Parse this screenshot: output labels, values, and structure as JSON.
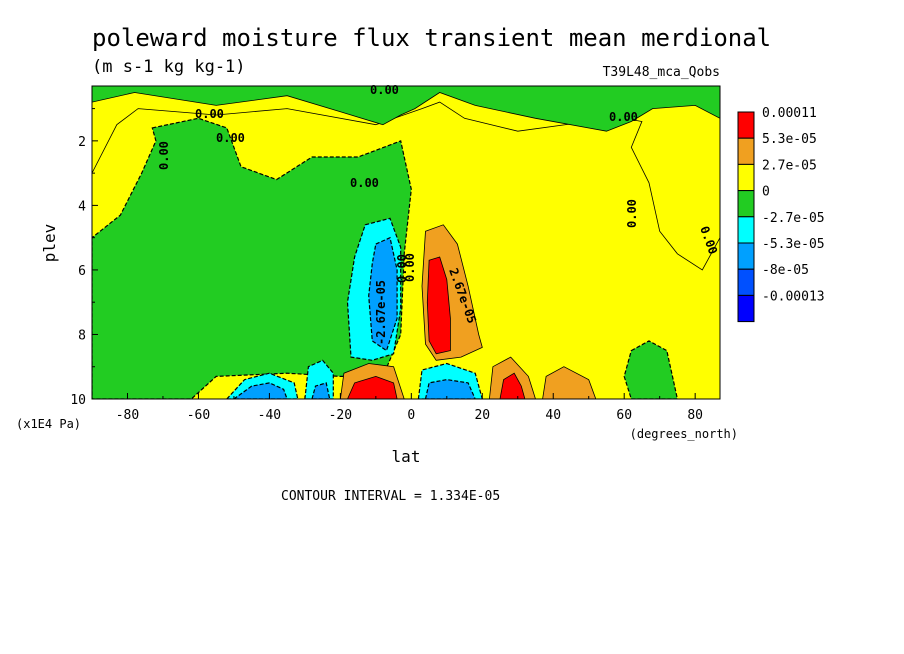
{
  "chart_data": {
    "type": "heatmap",
    "title": "poleward moisture flux transient mean merdional",
    "subtitle": "(m s-1 kg kg-1)",
    "run_label": "T39L48_mca_Qobs",
    "xlabel": "lat",
    "x_units": "(degrees_north)",
    "ylabel": "plev",
    "y_units": "(x1E4 Pa)",
    "xlim": [
      -90,
      87
    ],
    "ylim": [
      10,
      0.3
    ],
    "x_ticks": [
      -80,
      -60,
      -40,
      -20,
      0,
      20,
      40,
      60,
      80
    ],
    "y_ticks": [
      2,
      4,
      6,
      8,
      10
    ],
    "contour_interval": "CONTOUR INTERVAL = 1.334E-05",
    "legend": {
      "placement": "right",
      "labels": [
        "0.00011",
        "5.3e-05",
        "2.7e-05",
        "0",
        "-2.7e-05",
        "-5.3e-05",
        "-8e-05",
        "-0.00013"
      ],
      "colors": [
        "#ff0000",
        "#f0a020",
        "#ffff00",
        "#22cc22",
        "#00ffff",
        "#00a0ff",
        "#0050ff",
        "#0000ff"
      ]
    },
    "contour_labels": [
      "0.00",
      "0.00",
      "0.00",
      "0.00",
      "0.00",
      "0.00",
      "0.00",
      "0.00",
      "0.00",
      "2.67e-05",
      "0.00",
      "-2.67e-05"
    ],
    "regions": [
      {
        "level": "0",
        "color": "#ffff00",
        "points": [
          [
            -77,
            1.0
          ],
          [
            -55,
            1.2
          ],
          [
            -35,
            1.0
          ],
          [
            -10,
            1.5
          ],
          [
            3,
            1.0
          ],
          [
            8,
            0.8
          ],
          [
            15,
            1.3
          ],
          [
            30,
            1.7
          ],
          [
            50,
            1.4
          ],
          [
            60,
            1.3
          ],
          [
            65,
            1.4
          ],
          [
            62,
            2.2
          ],
          [
            67,
            3.3
          ],
          [
            70,
            4.8
          ],
          [
            75,
            5.5
          ],
          [
            82,
            6.0
          ],
          [
            87,
            5.0
          ],
          [
            87,
            10
          ],
          [
            -90,
            10
          ],
          [
            -90,
            3.0
          ],
          [
            -83,
            1.5
          ]
        ]
      },
      {
        "level": "0",
        "color": "#22cc22",
        "points": [
          [
            -90,
            0.3
          ],
          [
            87,
            0.3
          ],
          [
            87,
            1.3
          ],
          [
            80,
            0.9
          ],
          [
            68,
            1.0
          ],
          [
            62,
            1.4
          ],
          [
            55,
            1.7
          ],
          [
            35,
            1.3
          ],
          [
            18,
            0.9
          ],
          [
            8,
            0.5
          ],
          [
            1,
            1.0
          ],
          [
            -3,
            1.2
          ],
          [
            -8,
            1.5
          ],
          [
            -20,
            1.1
          ],
          [
            -35,
            0.6
          ],
          [
            -55,
            0.9
          ],
          [
            -78,
            0.5
          ],
          [
            -90,
            0.8
          ]
        ]
      },
      {
        "level": "-2.7e-05",
        "color": "#22cc22",
        "points": [
          [
            -73,
            1.6
          ],
          [
            -60,
            1.3
          ],
          [
            -52,
            1.6
          ],
          [
            -48,
            2.8
          ],
          [
            -38,
            3.2
          ],
          [
            -28,
            2.5
          ],
          [
            -15,
            2.5
          ],
          [
            -3,
            2.0
          ],
          [
            0,
            3.5
          ],
          [
            -2,
            5.5
          ],
          [
            -3,
            8.0
          ],
          [
            -8,
            9.3
          ],
          [
            -20,
            9.3
          ],
          [
            -35,
            9.2
          ],
          [
            -55,
            9.3
          ],
          [
            -62,
            10
          ],
          [
            -90,
            10
          ],
          [
            -90,
            5.0
          ],
          [
            -82,
            4.3
          ],
          [
            -76,
            3.0
          ],
          [
            -72,
            2.0
          ]
        ]
      },
      {
        "level": "-2.7e-05",
        "color": "#22cc22",
        "points": [
          [
            62,
            8.5
          ],
          [
            67,
            8.2
          ],
          [
            72,
            8.5
          ],
          [
            74,
            9.5
          ],
          [
            75,
            10
          ],
          [
            62,
            10
          ],
          [
            60,
            9.3
          ]
        ]
      },
      {
        "level": "-5.3e-05",
        "color": "#00ffff",
        "points": [
          [
            -13,
            4.6
          ],
          [
            -6,
            4.4
          ],
          [
            -3,
            5.3
          ],
          [
            -3,
            7.2
          ],
          [
            -5,
            8.6
          ],
          [
            -11,
            8.8
          ],
          [
            -17,
            8.7
          ],
          [
            -18,
            7.0
          ],
          [
            -16,
            5.6
          ]
        ]
      },
      {
        "level": "-8e-05",
        "color": "#00a0ff",
        "points": [
          [
            -10,
            5.2
          ],
          [
            -6,
            5.0
          ],
          [
            -4,
            6.0
          ],
          [
            -4,
            7.5
          ],
          [
            -7,
            8.5
          ],
          [
            -11,
            8.2
          ],
          [
            -12,
            6.8
          ],
          [
            -11,
            5.8
          ]
        ]
      },
      {
        "level": "-5.3e-05",
        "color": "#00ffff",
        "points": [
          [
            -52,
            10
          ],
          [
            -47,
            9.4
          ],
          [
            -40,
            9.2
          ],
          [
            -33,
            9.5
          ],
          [
            -32,
            10
          ]
        ]
      },
      {
        "level": "-8e-05",
        "color": "#00a0ff",
        "points": [
          [
            -50,
            10
          ],
          [
            -45,
            9.6
          ],
          [
            -40,
            9.5
          ],
          [
            -36,
            9.7
          ],
          [
            -35,
            10
          ]
        ]
      },
      {
        "level": "-5.3e-05",
        "color": "#00ffff",
        "points": [
          [
            -30,
            10
          ],
          [
            -29,
            9.0
          ],
          [
            -25,
            8.8
          ],
          [
            -22,
            9.2
          ],
          [
            -22,
            10
          ]
        ]
      },
      {
        "level": "-8e-05",
        "color": "#00a0ff",
        "points": [
          [
            -28,
            10
          ],
          [
            -27,
            9.6
          ],
          [
            -24,
            9.5
          ],
          [
            -23,
            10
          ]
        ]
      },
      {
        "level": "-5.3e-05",
        "color": "#00ffff",
        "points": [
          [
            2,
            10
          ],
          [
            3,
            9.1
          ],
          [
            10,
            8.9
          ],
          [
            18,
            9.2
          ],
          [
            20,
            10
          ]
        ]
      },
      {
        "level": "-8e-05",
        "color": "#00a0ff",
        "points": [
          [
            4,
            10
          ],
          [
            5,
            9.5
          ],
          [
            10,
            9.4
          ],
          [
            16,
            9.5
          ],
          [
            18,
            10
          ]
        ]
      },
      {
        "level": "2.7e-05",
        "color": "#f0a020",
        "points": [
          [
            4,
            4.8
          ],
          [
            9,
            4.6
          ],
          [
            13,
            5.2
          ],
          [
            16,
            6.5
          ],
          [
            19,
            8.0
          ],
          [
            20,
            8.4
          ],
          [
            14,
            8.7
          ],
          [
            7,
            8.8
          ],
          [
            4,
            8.3
          ],
          [
            3,
            6.5
          ]
        ]
      },
      {
        "level": "5.3e-05",
        "color": "#ff0000",
        "points": [
          [
            5,
            5.7
          ],
          [
            8,
            5.6
          ],
          [
            10,
            6.3
          ],
          [
            11,
            7.5
          ],
          [
            11,
            8.5
          ],
          [
            7,
            8.6
          ],
          [
            5,
            8.2
          ],
          [
            4.5,
            7.0
          ]
        ]
      },
      {
        "level": "2.7e-05",
        "color": "#f0a020",
        "points": [
          [
            -20,
            10
          ],
          [
            -19,
            9.2
          ],
          [
            -12,
            8.9
          ],
          [
            -5,
            9.0
          ],
          [
            -2,
            10
          ]
        ]
      },
      {
        "level": "5.3e-05",
        "color": "#ff0000",
        "points": [
          [
            -18,
            10
          ],
          [
            -16,
            9.5
          ],
          [
            -10,
            9.3
          ],
          [
            -5,
            9.5
          ],
          [
            -4,
            10
          ]
        ]
      },
      {
        "level": "2.7e-05",
        "color": "#f0a020",
        "points": [
          [
            22,
            10
          ],
          [
            23,
            9.0
          ],
          [
            28,
            8.7
          ],
          [
            33,
            9.3
          ],
          [
            35,
            10
          ]
        ]
      },
      {
        "level": "5.3e-05",
        "color": "#ff0000",
        "points": [
          [
            25,
            10
          ],
          [
            26,
            9.4
          ],
          [
            29,
            9.2
          ],
          [
            31,
            9.6
          ],
          [
            32,
            10
          ]
        ]
      },
      {
        "level": "2.7e-05",
        "color": "#f0a020",
        "points": [
          [
            37,
            10
          ],
          [
            38,
            9.3
          ],
          [
            43,
            9.0
          ],
          [
            50,
            9.4
          ],
          [
            52,
            10
          ]
        ]
      }
    ]
  }
}
